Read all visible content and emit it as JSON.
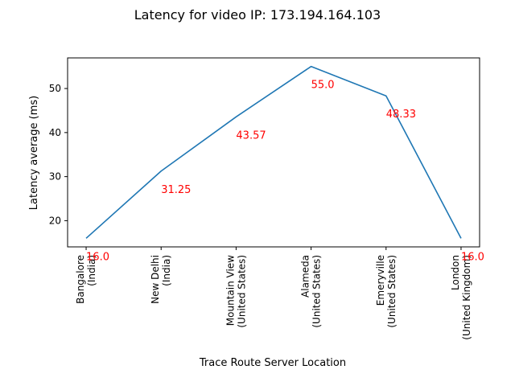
{
  "chart_data": {
    "type": "line",
    "title": "Latency for video IP: 173.194.164.103",
    "xlabel": "Trace Route Server Location",
    "ylabel": "Latency average (ms)",
    "categories": [
      [
        "Bangalore",
        "(India)"
      ],
      [
        "New Delhi",
        "(India)"
      ],
      [
        "Mountain View",
        "(United States)"
      ],
      [
        "Alameda",
        "(United States)"
      ],
      [
        "Emeryville",
        "(United States)"
      ],
      [
        "London",
        "(United Kingdom)"
      ]
    ],
    "values": [
      16.0,
      31.25,
      43.57,
      55.0,
      48.33,
      16.0
    ],
    "data_labels": [
      "16.0",
      "31.25",
      "43.57",
      "55.0",
      "48.33",
      "16.0"
    ],
    "ylim": [
      14.05,
      56.95
    ],
    "yticks": [
      20,
      30,
      40,
      50
    ],
    "grid": false,
    "line_color": "#1f77b4",
    "label_color": "#ff0000"
  }
}
